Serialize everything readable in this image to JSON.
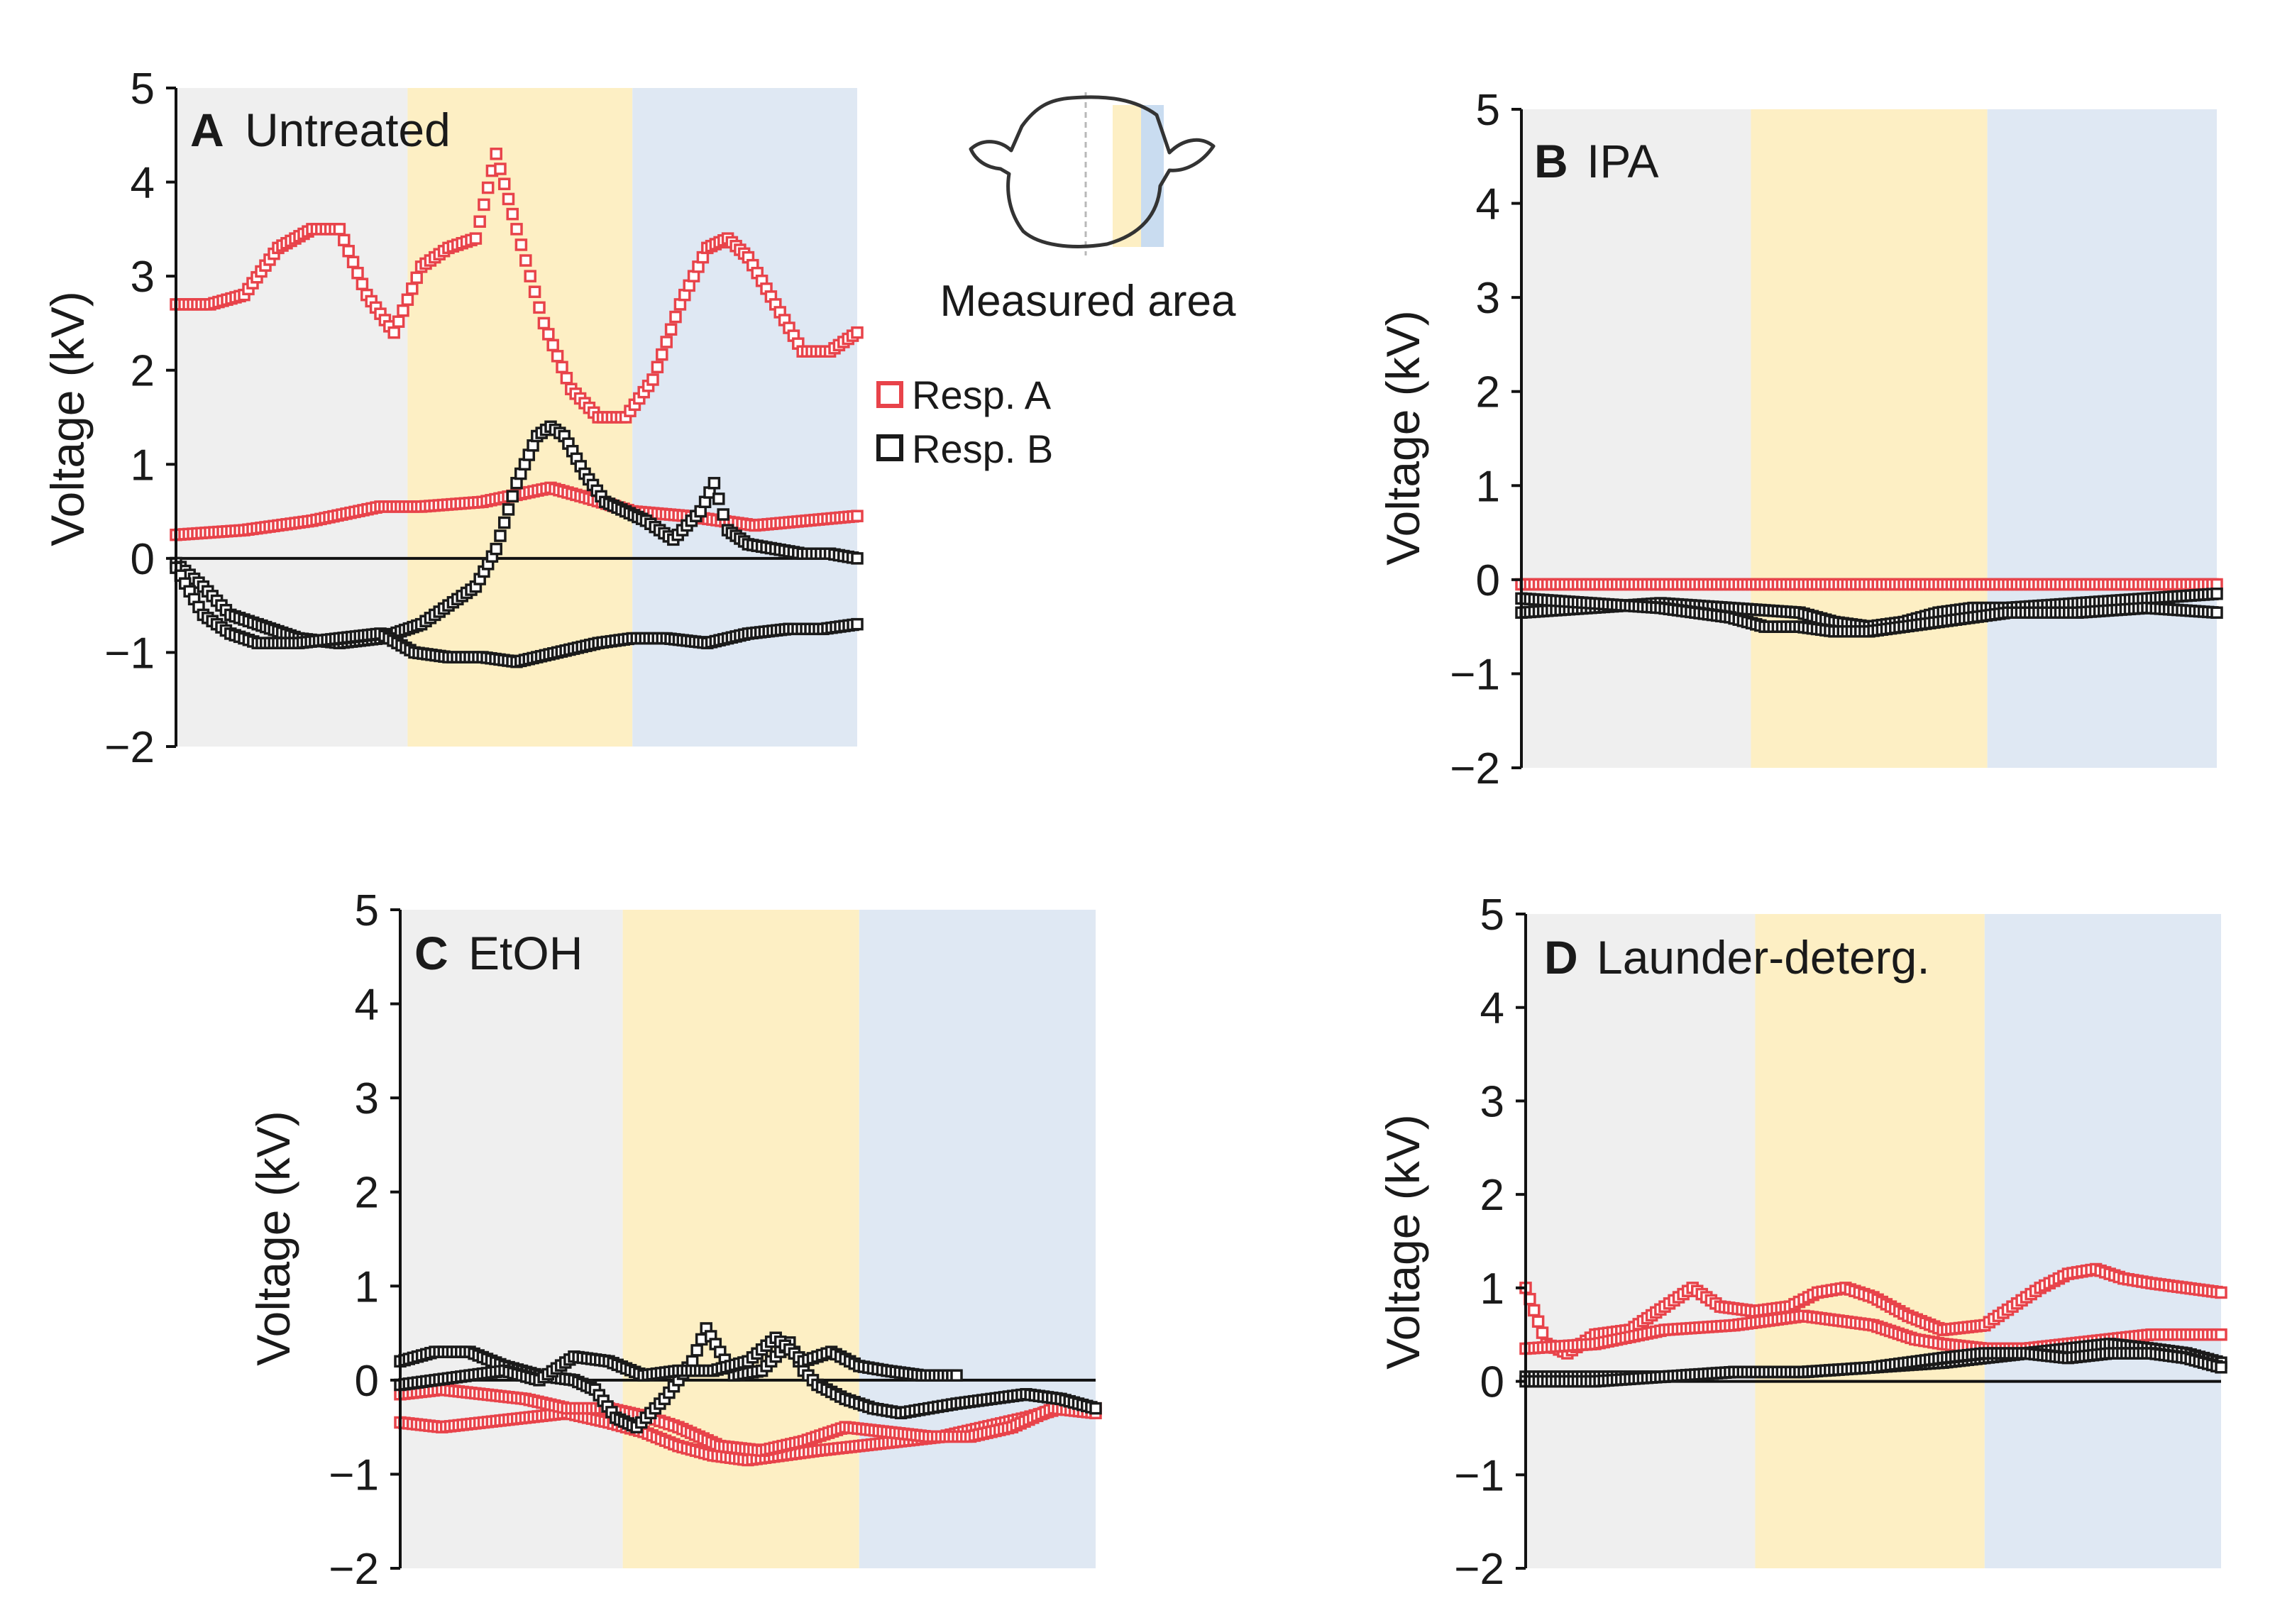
{
  "figure": {
    "inset": {
      "caption": "Measured area"
    },
    "legend": [
      {
        "label": "Resp. A",
        "color": "#e8434a"
      },
      {
        "label": "Resp. B",
        "color": "#1a1a1a"
      }
    ]
  },
  "colors": {
    "region_1": "#efefef",
    "region_2": "#fdefc4",
    "region_3": "#dfe8f3",
    "resp_a": "#e8434a",
    "resp_b": "#1a1a1a"
  },
  "chart_data": [
    {
      "id": "A",
      "type": "scatter",
      "letter": "A",
      "name": "Untreated",
      "ylabel": "Voltage (kV)",
      "xlabel": "",
      "xlim": [
        0,
        100
      ],
      "ylim": [
        -2,
        5
      ],
      "yticks": [
        "5",
        "4",
        "3",
        "2",
        "1",
        "0",
        "−1",
        "−2"
      ],
      "regions": [
        [
          0,
          34
        ],
        [
          34,
          67
        ],
        [
          67,
          100
        ]
      ],
      "series": [
        {
          "name": "Resp. A",
          "color": "#e8434a",
          "x": [
            0,
            5,
            10,
            15,
            20,
            24,
            28,
            32,
            36,
            40,
            44,
            47,
            50,
            54,
            58,
            62,
            66,
            70,
            74,
            78,
            81,
            84,
            88,
            92,
            96,
            100
          ],
          "y": [
            2.7,
            2.7,
            2.8,
            3.3,
            3.5,
            3.5,
            2.8,
            2.4,
            3.1,
            3.3,
            3.4,
            4.3,
            3.5,
            2.5,
            1.8,
            1.5,
            1.5,
            1.9,
            2.7,
            3.3,
            3.4,
            3.2,
            2.7,
            2.2,
            2.2,
            2.4
          ]
        },
        {
          "name": "Resp. A",
          "color": "#e8434a",
          "x": [
            0,
            10,
            20,
            30,
            36,
            45,
            55,
            60,
            67,
            75,
            85,
            100
          ],
          "y": [
            0.25,
            0.3,
            0.4,
            0.55,
            0.55,
            0.6,
            0.75,
            0.65,
            0.5,
            0.45,
            0.35,
            0.45
          ]
        },
        {
          "name": "Resp. B",
          "color": "#1a1a1a",
          "x": [
            0,
            4,
            8,
            12,
            18,
            24,
            30,
            36,
            40,
            44,
            47,
            50,
            53,
            55,
            57,
            60,
            63,
            66,
            69,
            73,
            77,
            79,
            81,
            84,
            88,
            92,
            96,
            100
          ],
          "y": [
            -0.05,
            -0.3,
            -0.6,
            -0.7,
            -0.85,
            -0.9,
            -0.85,
            -0.7,
            -0.5,
            -0.3,
            0.1,
            0.8,
            1.3,
            1.4,
            1.3,
            0.9,
            0.6,
            0.5,
            0.4,
            0.2,
            0.5,
            0.8,
            0.3,
            0.15,
            0.1,
            0.05,
            0.05,
            0.0
          ]
        },
        {
          "name": "Resp. B",
          "color": "#1a1a1a",
          "x": [
            0,
            4,
            8,
            12,
            18,
            24,
            30,
            35,
            40,
            45,
            50,
            56,
            62,
            67,
            72,
            78,
            84,
            90,
            95,
            100
          ],
          "y": [
            -0.1,
            -0.6,
            -0.8,
            -0.9,
            -0.9,
            -0.85,
            -0.8,
            -1.0,
            -1.05,
            -1.05,
            -1.1,
            -1.0,
            -0.9,
            -0.85,
            -0.85,
            -0.9,
            -0.8,
            -0.75,
            -0.75,
            -0.7
          ]
        }
      ]
    },
    {
      "id": "B",
      "type": "scatter",
      "letter": "B",
      "name": "IPA",
      "ylabel": "Voltage (kV)",
      "xlabel": "",
      "xlim": [
        0,
        100
      ],
      "ylim": [
        -2,
        5
      ],
      "yticks": [
        "5",
        "4",
        "3",
        "2",
        "1",
        "0",
        "−1",
        "−2"
      ],
      "regions": [
        [
          0,
          33
        ],
        [
          33,
          67
        ],
        [
          67,
          100
        ]
      ],
      "series": [
        {
          "name": "Resp. A",
          "color": "#e8434a",
          "x": [
            0,
            15,
            30,
            45,
            60,
            75,
            90,
            100
          ],
          "y": [
            -0.05,
            -0.05,
            -0.05,
            -0.05,
            -0.05,
            -0.05,
            -0.05,
            -0.05
          ]
        },
        {
          "name": "Resp. B",
          "color": "#1a1a1a",
          "x": [
            0,
            10,
            20,
            30,
            40,
            45,
            50,
            55,
            60,
            65,
            70,
            80,
            90,
            100
          ],
          "y": [
            -0.35,
            -0.3,
            -0.25,
            -0.3,
            -0.35,
            -0.45,
            -0.5,
            -0.45,
            -0.35,
            -0.3,
            -0.3,
            -0.25,
            -0.2,
            -0.15
          ]
        },
        {
          "name": "Resp. B",
          "color": "#1a1a1a",
          "x": [
            0,
            10,
            20,
            30,
            35,
            40,
            45,
            50,
            55,
            60,
            65,
            70,
            80,
            90,
            100
          ],
          "y": [
            -0.2,
            -0.25,
            -0.3,
            -0.4,
            -0.5,
            -0.5,
            -0.55,
            -0.55,
            -0.5,
            -0.45,
            -0.4,
            -0.35,
            -0.35,
            -0.3,
            -0.35
          ]
        }
      ]
    },
    {
      "id": "C",
      "type": "scatter",
      "letter": "C",
      "name": "EtOH",
      "ylabel": "Voltage (kV)",
      "xlabel": "",
      "xlim": [
        0,
        100
      ],
      "ylim": [
        -2,
        5
      ],
      "yticks": [
        "5",
        "4",
        "3",
        "2",
        "1",
        "0",
        "−1",
        "−2"
      ],
      "regions": [
        [
          0,
          32
        ],
        [
          32,
          66
        ],
        [
          66,
          100
        ]
      ],
      "series": [
        {
          "name": "Resp. A",
          "color": "#e8434a",
          "x": [
            0,
            6,
            12,
            18,
            24,
            30,
            35,
            40,
            45,
            50,
            55,
            60,
            66,
            72,
            78,
            84,
            90,
            95,
            100
          ],
          "y": [
            -0.45,
            -0.5,
            -0.45,
            -0.4,
            -0.35,
            -0.45,
            -0.55,
            -0.7,
            -0.8,
            -0.85,
            -0.8,
            -0.75,
            -0.7,
            -0.65,
            -0.6,
            -0.5,
            -0.4,
            -0.3,
            -0.3
          ]
        },
        {
          "name": "Resp. A",
          "color": "#e8434a",
          "x": [
            0,
            6,
            12,
            18,
            24,
            30,
            36,
            40,
            46,
            52,
            58,
            64,
            70,
            76,
            82,
            88,
            94,
            100
          ],
          "y": [
            -0.15,
            -0.1,
            -0.15,
            -0.2,
            -0.3,
            -0.3,
            -0.4,
            -0.5,
            -0.7,
            -0.75,
            -0.65,
            -0.5,
            -0.55,
            -0.6,
            -0.6,
            -0.5,
            -0.3,
            -0.35
          ]
        },
        {
          "name": "Resp. B",
          "color": "#1a1a1a",
          "x": [
            0,
            5,
            10,
            15,
            20,
            25,
            28,
            31,
            34,
            38,
            42,
            44,
            46,
            48,
            52,
            56,
            58,
            60,
            64,
            68,
            72,
            76,
            80,
            85,
            90,
            95,
            100
          ],
          "y": [
            0.2,
            0.3,
            0.3,
            0.15,
            0.05,
            0.0,
            -0.1,
            -0.4,
            -0.5,
            -0.2,
            0.2,
            0.55,
            0.3,
            0.05,
            0.1,
            0.4,
            0.1,
            -0.05,
            -0.2,
            -0.3,
            -0.35,
            -0.3,
            -0.25,
            -0.2,
            -0.15,
            -0.2,
            -0.3
          ]
        },
        {
          "name": "Resp. B",
          "color": "#1a1a1a",
          "x": [
            0,
            5,
            10,
            15,
            20,
            25,
            30,
            35,
            40,
            45,
            50,
            54,
            58,
            62,
            66,
            70,
            75,
            80
          ],
          "y": [
            -0.05,
            0.0,
            0.05,
            0.1,
            0.0,
            0.25,
            0.2,
            0.05,
            0.1,
            0.1,
            0.2,
            0.45,
            0.2,
            0.3,
            0.15,
            0.1,
            0.05,
            0.05
          ]
        }
      ]
    },
    {
      "id": "D",
      "type": "scatter",
      "letter": "D",
      "name": "Launder-deterg.",
      "ylabel": "Voltage (kV)",
      "xlabel": "",
      "xlim": [
        0,
        100
      ],
      "ylim": [
        -2,
        5
      ],
      "yticks": [
        "5",
        "4",
        "3",
        "2",
        "1",
        "0",
        "−1",
        "−2"
      ],
      "regions": [
        [
          0,
          33
        ],
        [
          33,
          66
        ],
        [
          66,
          100
        ]
      ],
      "series": [
        {
          "name": "Resp. A",
          "color": "#e8434a",
          "x": [
            0,
            3,
            6,
            10,
            15,
            20,
            24,
            28,
            33,
            38,
            42,
            46,
            50,
            55,
            60,
            66,
            70,
            74,
            78,
            82,
            86,
            90,
            95,
            100
          ],
          "y": [
            1.0,
            0.4,
            0.3,
            0.5,
            0.55,
            0.8,
            1.0,
            0.8,
            0.75,
            0.8,
            0.95,
            1.0,
            0.9,
            0.7,
            0.55,
            0.6,
            0.8,
            1.0,
            1.15,
            1.2,
            1.1,
            1.05,
            1.0,
            0.95
          ]
        },
        {
          "name": "Resp. A",
          "color": "#e8434a",
          "x": [
            0,
            10,
            20,
            30,
            40,
            50,
            56,
            60,
            66,
            72,
            78,
            84,
            90,
            95,
            100
          ],
          "y": [
            0.35,
            0.4,
            0.55,
            0.6,
            0.7,
            0.6,
            0.45,
            0.4,
            0.35,
            0.35,
            0.4,
            0.45,
            0.5,
            0.5,
            0.5
          ]
        },
        {
          "name": "Resp. B",
          "color": "#1a1a1a",
          "x": [
            0,
            10,
            20,
            30,
            40,
            50,
            60,
            66,
            72,
            78,
            84,
            90,
            95,
            100
          ],
          "y": [
            0.05,
            0.05,
            0.05,
            0.1,
            0.1,
            0.15,
            0.2,
            0.25,
            0.3,
            0.35,
            0.4,
            0.35,
            0.3,
            0.2
          ]
        },
        {
          "name": "Resp. B",
          "color": "#1a1a1a",
          "x": [
            0,
            10,
            20,
            30,
            40,
            50,
            60,
            66,
            72,
            78,
            84,
            90,
            95,
            100
          ],
          "y": [
            0.0,
            0.0,
            0.05,
            0.1,
            0.1,
            0.15,
            0.25,
            0.3,
            0.3,
            0.25,
            0.3,
            0.3,
            0.25,
            0.15
          ]
        }
      ]
    }
  ]
}
